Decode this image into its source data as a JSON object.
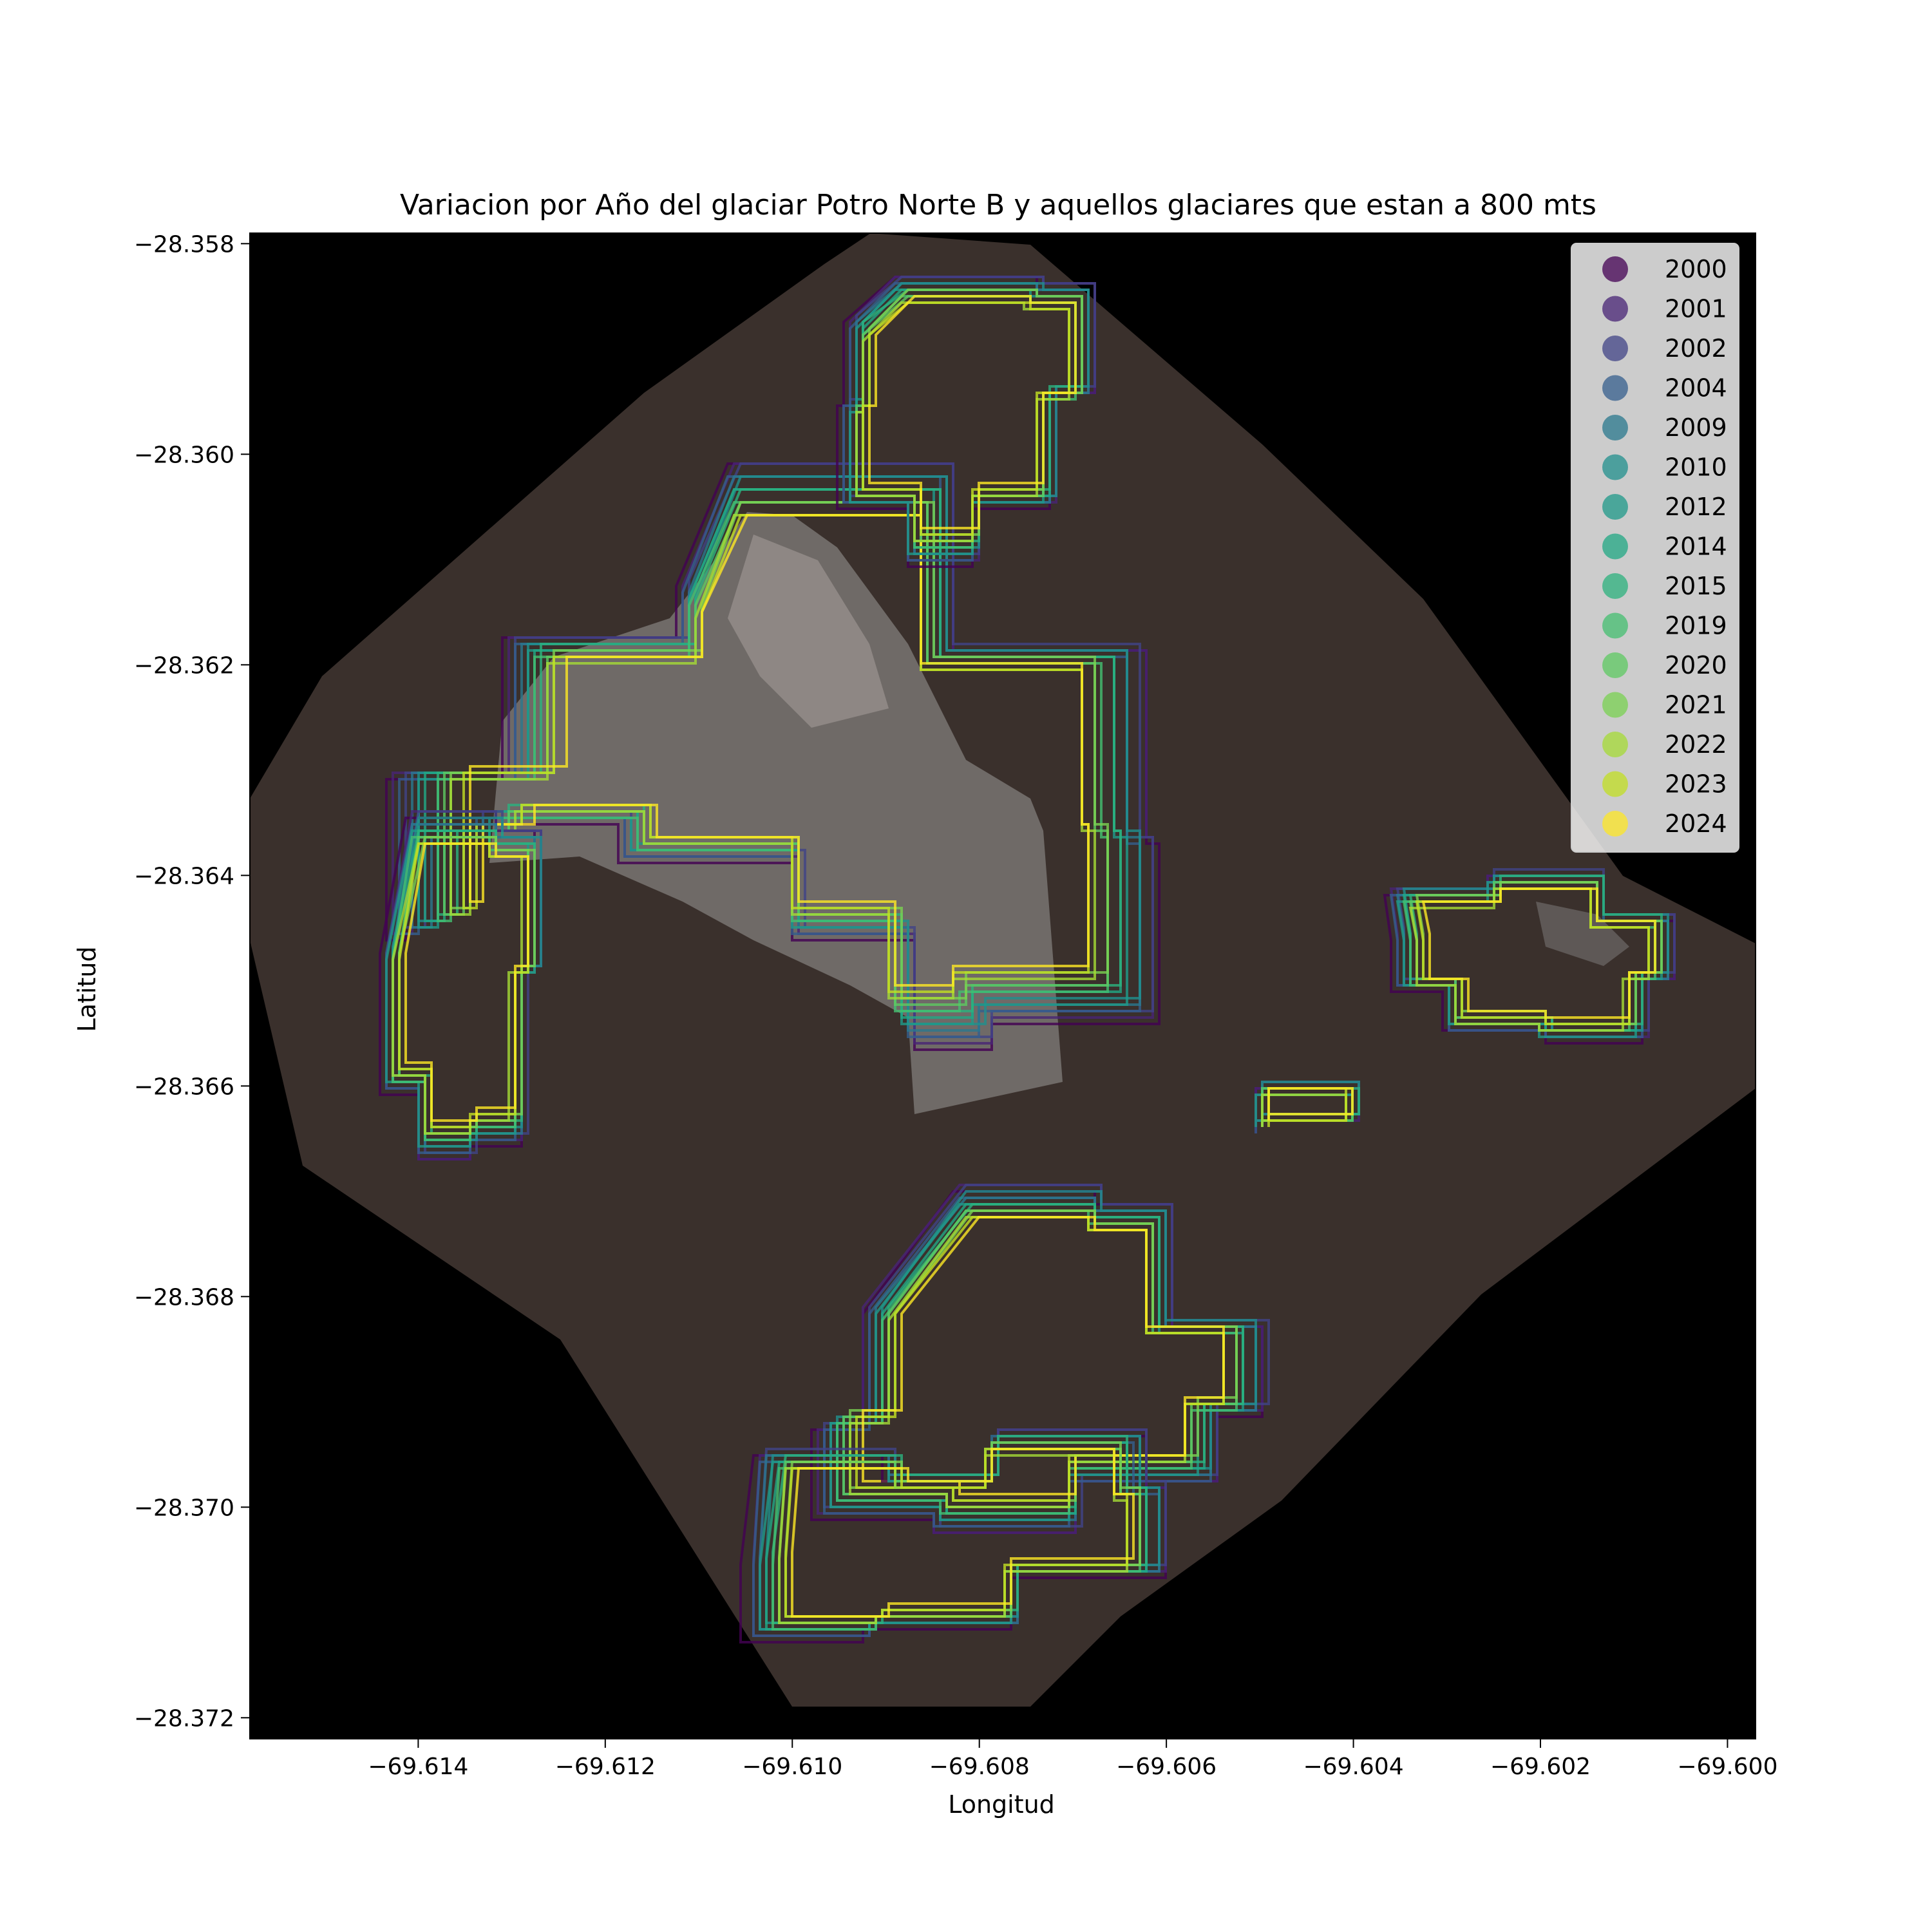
{
  "chart_data": {
    "type": "map",
    "title": "Variacion por Año del glaciar Potro Norte B y aquellos glaciares que estan a 800 mts",
    "xlabel": "Longitud",
    "ylabel": "Latitud",
    "xlim": [
      -69.6158,
      -69.5997
    ],
    "ylim": [
      -28.3722,
      -28.3579
    ],
    "x_ticks": [
      {
        "value": -69.614,
        "label": "−69.614"
      },
      {
        "value": -69.612,
        "label": "−69.612"
      },
      {
        "value": -69.61,
        "label": "−69.610"
      },
      {
        "value": -69.608,
        "label": "−69.608"
      },
      {
        "value": -69.606,
        "label": "−69.606"
      },
      {
        "value": -69.604,
        "label": "−69.604"
      },
      {
        "value": -69.602,
        "label": "−69.602"
      },
      {
        "value": -69.6,
        "label": "−69.600"
      }
    ],
    "y_ticks": [
      {
        "value": -28.358,
        "label": "−28.358"
      },
      {
        "value": -28.36,
        "label": "−28.360"
      },
      {
        "value": -28.362,
        "label": "−28.362"
      },
      {
        "value": -28.364,
        "label": "−28.364"
      },
      {
        "value": -28.366,
        "label": "−28.366"
      },
      {
        "value": -28.368,
        "label": "−28.368"
      },
      {
        "value": -28.37,
        "label": "−28.370"
      },
      {
        "value": -28.372,
        "label": "−28.372"
      }
    ],
    "legend_position": "top-right",
    "background": "satellite image (dark brown terrain, grey-white ice, black nodata)",
    "series": [
      {
        "name": "2000",
        "color": "#440154"
      },
      {
        "name": "2001",
        "color": "#482475"
      },
      {
        "name": "2002",
        "color": "#414487"
      },
      {
        "name": "2004",
        "color": "#355f8d"
      },
      {
        "name": "2009",
        "color": "#2a788e"
      },
      {
        "name": "2010",
        "color": "#21908d"
      },
      {
        "name": "2012",
        "color": "#1f9a8a"
      },
      {
        "name": "2014",
        "color": "#22a884"
      },
      {
        "name": "2015",
        "color": "#2cb17e"
      },
      {
        "name": "2019",
        "color": "#44bf70"
      },
      {
        "name": "2020",
        "color": "#5ec962"
      },
      {
        "name": "2021",
        "color": "#7ad151"
      },
      {
        "name": "2022",
        "color": "#a5db36"
      },
      {
        "name": "2023",
        "color": "#c2df23"
      },
      {
        "name": "2024",
        "color": "#fde725"
      }
    ]
  }
}
